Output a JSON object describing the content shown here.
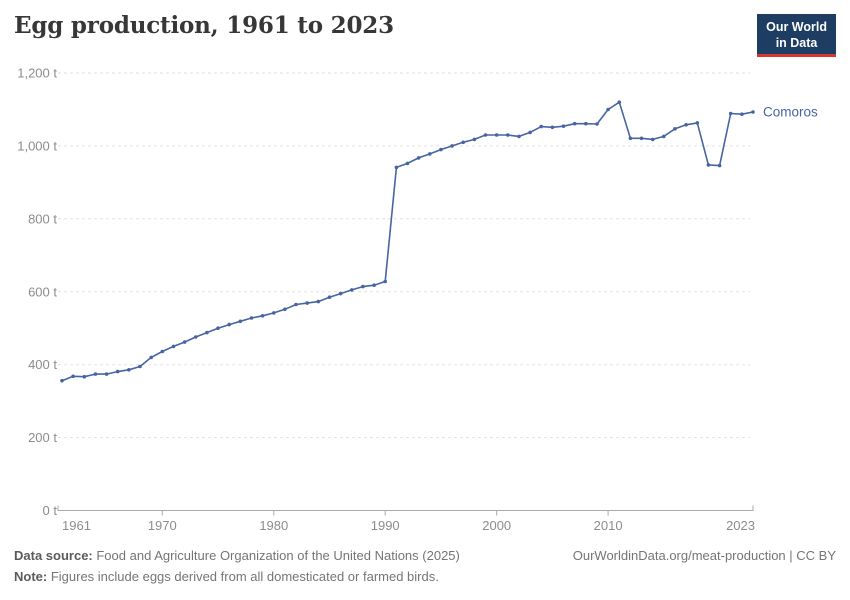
{
  "header": {
    "title": "Egg production, 1961 to 2023",
    "logo": {
      "line1": "Our World",
      "line2": "in Data",
      "bg_color": "#1d3d63",
      "accent_color": "#d8352e"
    }
  },
  "chart_data": {
    "type": "line",
    "title": "Egg production, 1961 to 2023",
    "unit": "t",
    "xlim": [
      1961,
      2023
    ],
    "ylim": [
      0,
      1200
    ],
    "grid": "horizontal dashed gridlines",
    "legend_position": "end-of-line label",
    "x_ticks": [
      1961,
      1970,
      1980,
      1990,
      2000,
      2010,
      2023
    ],
    "y_ticks": [
      0,
      200,
      400,
      600,
      800,
      1000,
      1200
    ],
    "y_tick_labels": [
      "0 t",
      "200 t",
      "400 t",
      "600 t",
      "800 t",
      "1,000 t",
      "1,200 t"
    ],
    "series": [
      {
        "name": "Comoros",
        "color": "#4665a2",
        "years": [
          1961,
          1962,
          1963,
          1964,
          1965,
          1966,
          1967,
          1968,
          1969,
          1970,
          1971,
          1972,
          1973,
          1974,
          1975,
          1976,
          1977,
          1978,
          1979,
          1980,
          1981,
          1982,
          1983,
          1984,
          1985,
          1986,
          1987,
          1988,
          1989,
          1990,
          1991,
          1992,
          1993,
          1994,
          1995,
          1996,
          1997,
          1998,
          1999,
          2000,
          2001,
          2002,
          2003,
          2004,
          2005,
          2006,
          2007,
          2008,
          2009,
          2010,
          2011,
          2012,
          2013,
          2014,
          2015,
          2016,
          2017,
          2018,
          2019,
          2020,
          2021,
          2022,
          2023
        ],
        "values": [
          356,
          368,
          367,
          374,
          374,
          381,
          386,
          395,
          420,
          436,
          450,
          462,
          476,
          488,
          500,
          510,
          519,
          528,
          534,
          542,
          552,
          565,
          569,
          573,
          585,
          595,
          605,
          614,
          618,
          628,
          941,
          952,
          967,
          978,
          990,
          1000,
          1010,
          1018,
          1030,
          1030,
          1030,
          1026,
          1037,
          1053,
          1051,
          1054,
          1061,
          1061,
          1060,
          1100,
          1120,
          1021,
          1021,
          1018,
          1026,
          1047,
          1058,
          1063,
          948,
          946,
          1089,
          1087,
          1093
        ]
      }
    ]
  },
  "footer": {
    "source_label": "Data source:",
    "source_text": " Food and Agriculture Organization of the United Nations (2025)",
    "note_label": "Note:",
    "note_text": " Figures include eggs derived from all domesticated or farmed birds.",
    "credit": "OurWorldinData.org/meat-production | CC BY"
  }
}
